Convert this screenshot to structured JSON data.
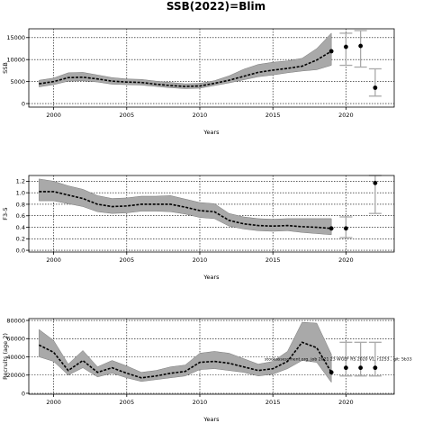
{
  "title": "SSB(2022)=Blim",
  "chart_data": [
    {
      "type": "line",
      "ylabel": "SSB",
      "xlabel": "Years",
      "xlim": [
        1998.3,
        2023.3
      ],
      "ylim": [
        -800,
        17000
      ],
      "grid": true,
      "xticks": [
        2000,
        2005,
        2010,
        2015,
        2020
      ],
      "yticks": [
        0,
        5000,
        10000,
        15000
      ],
      "x": [
        1999,
        2000,
        2001,
        2002,
        2003,
        2004,
        2005,
        2006,
        2007,
        2008,
        2009,
        2010,
        2011,
        2012,
        2013,
        2014,
        2015,
        2016,
        2017,
        2018,
        2019
      ],
      "series": [
        {
          "values": [
            4500,
            5000,
            5900,
            6000,
            5600,
            5100,
            4900,
            4800,
            4400,
            4100,
            3900,
            4000,
            4600,
            5300,
            6200,
            7100,
            7600,
            8000,
            8500,
            9900,
            11900
          ]
        }
      ],
      "band_upper": [
        5300,
        5800,
        7000,
        7100,
        6500,
        5900,
        5600,
        5500,
        5100,
        4800,
        4500,
        4600,
        5200,
        6300,
        7800,
        8900,
        9400,
        9700,
        10300,
        12500,
        16000
      ],
      "band_lower": [
        3800,
        4300,
        5100,
        5200,
        4900,
        4400,
        4300,
        4200,
        3900,
        3600,
        3400,
        3500,
        4100,
        4700,
        5400,
        6100,
        6500,
        7000,
        7400,
        7700,
        8700
      ],
      "projections": [
        {
          "x": 2020,
          "value": 12900,
          "lower": 8700,
          "upper": 16000
        },
        {
          "x": 2021,
          "value": 13100,
          "lower": 8300,
          "upper": 16600
        },
        {
          "x": 2022,
          "value": 3600,
          "lower": 1700,
          "upper": 7900
        }
      ]
    },
    {
      "type": "line",
      "ylabel": "F3-5",
      "xlabel": "Years",
      "xlim": [
        1998.3,
        2023.3
      ],
      "ylim": [
        -0.03,
        1.3
      ],
      "grid": true,
      "xticks": [
        2000,
        2005,
        2010,
        2015,
        2020
      ],
      "yticks": [
        "0.0",
        "0.2",
        "0.4",
        "0.6",
        "0.8",
        "1.0",
        "1.2"
      ],
      "x": [
        1999,
        2000,
        2001,
        2002,
        2003,
        2004,
        2005,
        2006,
        2007,
        2008,
        2009,
        2010,
        2011,
        2012,
        2013,
        2014,
        2015,
        2016,
        2017,
        2018,
        2019
      ],
      "series": [
        {
          "values": [
            1.02,
            1.02,
            0.96,
            0.9,
            0.8,
            0.76,
            0.77,
            0.8,
            0.8,
            0.8,
            0.75,
            0.69,
            0.67,
            0.52,
            0.46,
            0.43,
            0.42,
            0.43,
            0.41,
            0.4,
            0.38
          ]
        }
      ],
      "band_upper": [
        1.24,
        1.2,
        1.12,
        1.06,
        0.95,
        0.9,
        0.91,
        0.94,
        0.94,
        0.95,
        0.89,
        0.83,
        0.81,
        0.64,
        0.58,
        0.55,
        0.54,
        0.55,
        0.55,
        0.55,
        0.55
      ],
      "band_lower": [
        0.86,
        0.86,
        0.81,
        0.76,
        0.67,
        0.64,
        0.65,
        0.68,
        0.68,
        0.67,
        0.63,
        0.57,
        0.55,
        0.42,
        0.37,
        0.34,
        0.33,
        0.34,
        0.31,
        0.29,
        0.27
      ],
      "projections": [
        {
          "x": 2020,
          "value": 0.38,
          "lower": 0.22,
          "upper": 0.58
        },
        {
          "x": 2022,
          "value": 1.17,
          "lower": 0.64,
          "upper": 1.3
        }
      ]
    },
    {
      "type": "line",
      "ylabel": "Recruits (age 2)",
      "xlabel": "Years",
      "xlim": [
        1998.3,
        2023.3
      ],
      "ylim": [
        -1000,
        82000
      ],
      "grid": true,
      "xticks": [
        2000,
        2005,
        2010,
        2015,
        2020
      ],
      "yticks": [
        0,
        20000,
        40000,
        60000,
        80000
      ],
      "x": [
        1999,
        2000,
        2001,
        2002,
        2003,
        2004,
        2005,
        2006,
        2007,
        2008,
        2009,
        2010,
        2011,
        2012,
        2013,
        2014,
        2015,
        2016,
        2017,
        2018,
        2019
      ],
      "series": [
        {
          "values": [
            53000,
            45000,
            25000,
            36000,
            23000,
            28000,
            22000,
            17000,
            19000,
            22000,
            24000,
            34000,
            35000,
            33000,
            29000,
            25000,
            27000,
            35000,
            56000,
            50000,
            23000
          ]
        }
      ],
      "band_upper": [
        70000,
        58000,
        32000,
        47000,
        29000,
        36000,
        30000,
        23000,
        25000,
        29000,
        31000,
        44000,
        46000,
        44000,
        38000,
        32000,
        35000,
        46000,
        78000,
        77000,
        43000
      ],
      "band_lower": [
        40000,
        35000,
        20000,
        28000,
        18000,
        22000,
        17000,
        13000,
        15000,
        17000,
        19000,
        26000,
        27000,
        25000,
        23000,
        19000,
        21000,
        27000,
        36000,
        34000,
        12000
      ],
      "projections": [
        {
          "x": 2020,
          "value": 28000,
          "lower": 19000,
          "upper": 56000
        },
        {
          "x": 2021,
          "value": 28000,
          "lower": 19000,
          "upper": 56000
        },
        {
          "x": 2022,
          "value": 28000,
          "lower": 19000,
          "upper": 56000
        }
      ],
      "annotation": "stockassessment.org, job 2021 23 WGEF RS 2020 V1, r1253 , git: 5b33"
    }
  ]
}
